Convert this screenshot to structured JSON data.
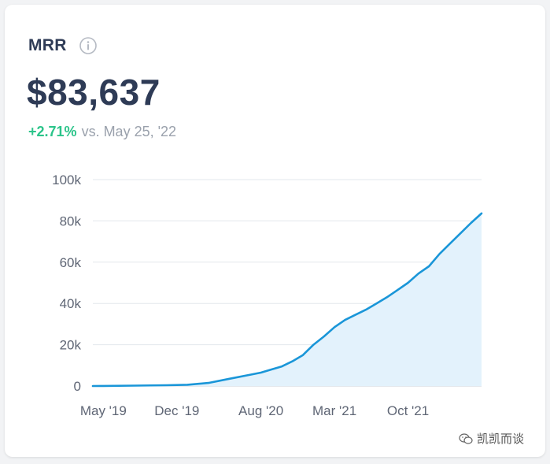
{
  "card": {
    "title": "MRR",
    "value": "$83,637",
    "delta_pct": "+2.71%",
    "delta_text": "vs. May 25, '22"
  },
  "watermark": {
    "text": "凯凯而谈"
  },
  "colors": {
    "line": "#1a96d8",
    "area": "#e3f2fc",
    "positive": "#2bc48a",
    "title": "#2e3b56"
  },
  "chart_data": {
    "type": "area",
    "title": "",
    "xlabel": "",
    "ylabel": "",
    "x_tick_labels": [
      "May '19",
      "Dec '19",
      "Aug '20",
      "Mar '21",
      "Oct '21"
    ],
    "x_ticks": [
      "2019-05",
      "2019-12",
      "2020-08",
      "2021-03",
      "2021-10"
    ],
    "y_tick_labels": [
      "0",
      "20k",
      "40k",
      "60k",
      "80k",
      "100k"
    ],
    "y_ticks": [
      0,
      20000,
      40000,
      60000,
      80000,
      100000
    ],
    "ylim": [
      0,
      100000
    ],
    "xlim": [
      "2019-04",
      "2022-05"
    ],
    "grid": true,
    "series": [
      {
        "x": [
          "2019-04",
          "2019-05",
          "2019-08",
          "2019-11",
          "2020-01",
          "2020-03",
          "2020-05",
          "2020-07",
          "2020-08",
          "2020-09",
          "2020-10",
          "2020-11",
          "2020-12",
          "2021-01",
          "2021-02",
          "2021-03",
          "2021-04",
          "2021-05",
          "2021-06",
          "2021-07",
          "2021-08",
          "2021-09",
          "2021-10",
          "2021-11",
          "2021-12",
          "2022-01",
          "2022-02",
          "2022-03",
          "2022-04",
          "2022-05"
        ],
        "values": [
          0,
          50,
          200,
          400,
          600,
          1500,
          3500,
          5500,
          6500,
          8000,
          9500,
          12000,
          15000,
          20000,
          24000,
          28500,
          32000,
          34500,
          37000,
          40000,
          43000,
          46500,
          50000,
          54500,
          58000,
          64000,
          69000,
          74000,
          79000,
          83637
        ]
      }
    ]
  }
}
